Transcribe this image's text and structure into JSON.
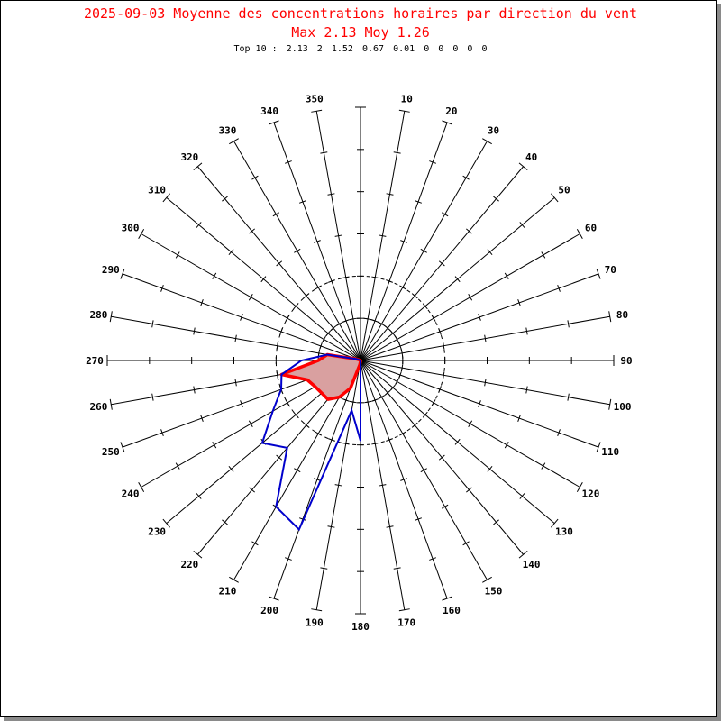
{
  "title": {
    "line1": "2025-09-03 Moyenne des concentrations horaires par direction du vent",
    "line2": "Max 2.13 Moy 1.26"
  },
  "top10": {
    "label": "Top 10 :",
    "values": [
      "2.13",
      "2",
      "1.52",
      "0.67",
      "0.01",
      "0",
      "0",
      "0",
      "0",
      "0"
    ]
  },
  "colors": {
    "title": "#ff0000",
    "mean_line": "#ff0000",
    "mean_fill": "#d9a0a0",
    "max_line": "#0000cc",
    "axis": "#000000"
  },
  "chart_data": {
    "type": "polar",
    "directions": [
      "10",
      "20",
      "30",
      "40",
      "50",
      "60",
      "70",
      "80",
      "90",
      "100",
      "110",
      "120",
      "130",
      "140",
      "150",
      "160",
      "170",
      "180",
      "190",
      "200",
      "210",
      "220",
      "230",
      "240",
      "250",
      "260",
      "270",
      "280",
      "290",
      "300",
      "310",
      "320",
      "330",
      "340",
      "350"
    ],
    "r_max": 3.0,
    "ticks_per_spoke": 6,
    "dashed_circles": [
      0.5,
      1.0
    ],
    "series": [
      {
        "style": "mean",
        "points": [
          [
            180,
            0.01
          ],
          [
            190,
            0.05
          ],
          [
            200,
            0.35
          ],
          [
            210,
            0.5
          ],
          [
            220,
            0.6
          ],
          [
            230,
            0.6
          ],
          [
            240,
            0.62
          ],
          [
            250,
            0.67
          ],
          [
            260,
            0.95
          ],
          [
            270,
            0.5
          ],
          [
            280,
            0.4
          ],
          [
            290,
            0.05
          ],
          [
            300,
            0.01
          ]
        ]
      },
      {
        "style": "max",
        "points": [
          [
            180,
            0.95
          ],
          [
            190,
            0.6
          ],
          [
            200,
            2.13
          ],
          [
            210,
            2.0
          ],
          [
            220,
            1.35
          ],
          [
            230,
            1.52
          ],
          [
            240,
            1.2
          ],
          [
            250,
            1.0
          ],
          [
            260,
            0.95
          ],
          [
            270,
            0.7
          ],
          [
            280,
            0.4
          ],
          [
            290,
            0.05
          ],
          [
            300,
            0.01
          ]
        ]
      }
    ]
  }
}
